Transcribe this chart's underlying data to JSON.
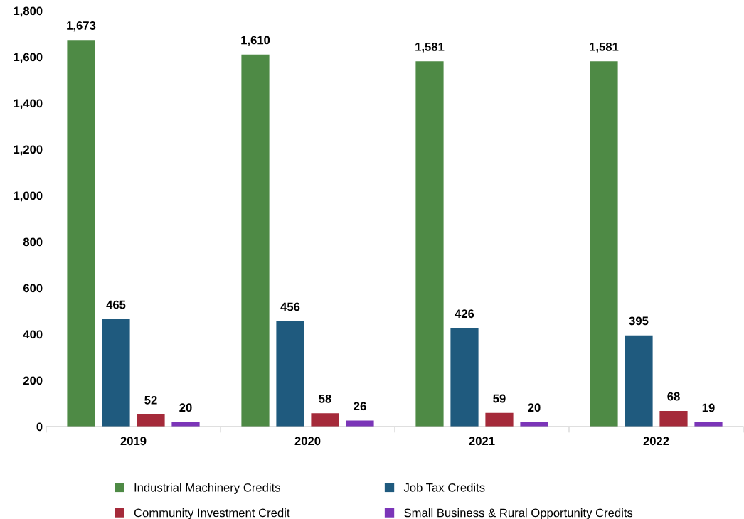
{
  "chart_data": {
    "type": "bar",
    "categories": [
      "2019",
      "2020",
      "2021",
      "2022"
    ],
    "series": [
      {
        "name": "Industrial Machinery Credits",
        "color": "#4e8a45",
        "values": [
          1673,
          1610,
          1581,
          1581
        ]
      },
      {
        "name": "Job Tax Credits",
        "color": "#1f5a7e",
        "values": [
          465,
          456,
          426,
          395
        ]
      },
      {
        "name": "Community Investment Credit",
        "color": "#a52a3a",
        "values": [
          52,
          58,
          59,
          68
        ]
      },
      {
        "name": "Small Business & Rural Opportunity Credits",
        "color": "#7b35b8",
        "values": [
          20,
          26,
          20,
          19
        ]
      }
    ],
    "ylim": [
      0,
      1800
    ],
    "yticks": [
      0,
      {
        "value": 200,
        "label": "200"
      },
      {
        "value": 400,
        "label": "400"
      },
      {
        "value": 600,
        "label": "600"
      },
      {
        "value": 800,
        "label": "800"
      },
      {
        "value": 1000,
        "label": "1,000"
      },
      {
        "value": 1200,
        "label": "1,200"
      },
      {
        "value": 1400,
        "label": "1,400"
      },
      {
        "value": 1600,
        "label": "1,600"
      },
      {
        "value": 1800,
        "label": "1,800"
      }
    ],
    "value_labels": [
      [
        "1,673",
        "1,610",
        "1,581",
        "1,581"
      ],
      [
        "465",
        "456",
        "426",
        "395"
      ],
      [
        "52",
        "58",
        "59",
        "68"
      ],
      [
        "20",
        "26",
        "20",
        "19"
      ]
    ],
    "grid": false,
    "legend": "bottom"
  }
}
